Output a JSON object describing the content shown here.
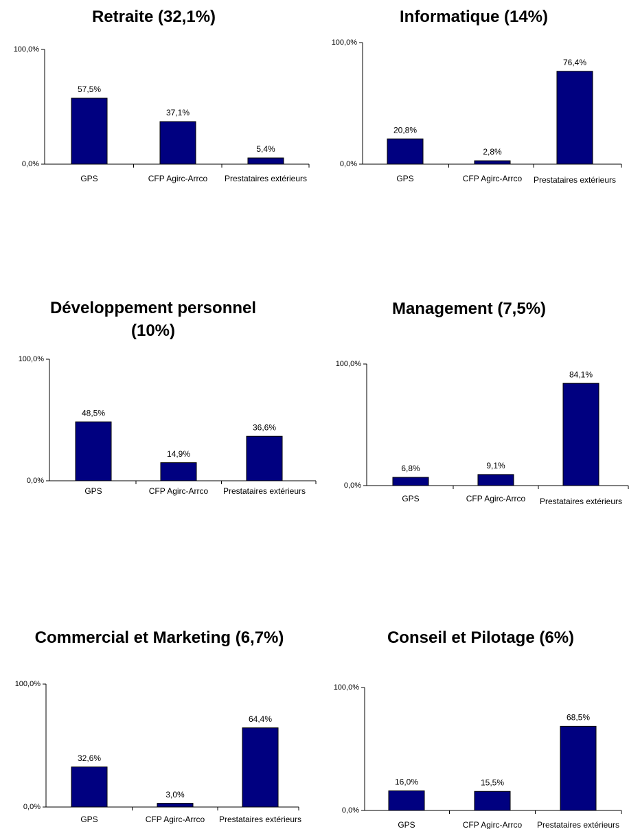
{
  "chart_data": [
    {
      "type": "bar",
      "title": "Retraite (32,1%)",
      "categories": [
        "GPS",
        "CFP Agirc-Arrco",
        "Prestataires extérieurs"
      ],
      "values": [
        57.5,
        37.1,
        5.4
      ],
      "value_labels": [
        "57,5%",
        "37,1%",
        "5,4%"
      ],
      "color": "#000080",
      "ylim": [
        0,
        100
      ],
      "yticks": [
        {
          "value": 0,
          "label": "0,0%"
        },
        {
          "value": 100,
          "label": "100,0%"
        }
      ]
    },
    {
      "type": "bar",
      "title": "Informatique (14%)",
      "categories": [
        "GPS",
        "CFP Agirc-Arrco",
        "Prestataires extérieurs"
      ],
      "values": [
        20.8,
        2.8,
        76.4
      ],
      "value_labels": [
        "20,8%",
        "2,8%",
        "76,4%"
      ],
      "color": "#000080",
      "ylim": [
        0,
        100
      ],
      "yticks": [
        {
          "value": 0,
          "label": "0,0%"
        },
        {
          "value": 100,
          "label": "100,0%"
        }
      ]
    },
    {
      "type": "bar",
      "title": "Développement personnel (10%)",
      "categories": [
        "GPS",
        "CFP Agirc-Arrco",
        "Prestataires extérieurs"
      ],
      "values": [
        48.5,
        14.9,
        36.6
      ],
      "value_labels": [
        "48,5%",
        "14,9%",
        "36,6%"
      ],
      "color": "#000080",
      "ylim": [
        0,
        100
      ],
      "yticks": [
        {
          "value": 0,
          "label": "0,0%"
        },
        {
          "value": 100,
          "label": "100,0%"
        }
      ]
    },
    {
      "type": "bar",
      "title": "Management (7,5%)",
      "categories": [
        "GPS",
        "CFP Agirc-Arrco",
        "Prestataires extérieurs"
      ],
      "values": [
        6.8,
        9.1,
        84.1
      ],
      "value_labels": [
        "6,8%",
        "9,1%",
        "84,1%"
      ],
      "color": "#000080",
      "ylim": [
        0,
        100
      ],
      "yticks": [
        {
          "value": 0,
          "label": "0,0%"
        },
        {
          "value": 100,
          "label": "100,0%"
        }
      ]
    },
    {
      "type": "bar",
      "title": "Commercial et Marketing (6,7%)",
      "categories": [
        "GPS",
        "CFP Agirc-Arrco",
        "Prestataires extérieurs"
      ],
      "values": [
        32.6,
        3.0,
        64.4
      ],
      "value_labels": [
        "32,6%",
        "3,0%",
        "64,4%"
      ],
      "color": "#000080",
      "ylim": [
        0,
        100
      ],
      "yticks": [
        {
          "value": 0,
          "label": "0,0%"
        },
        {
          "value": 100,
          "label": "100,0%"
        }
      ]
    },
    {
      "type": "bar",
      "title": "Conseil et Pilotage (6%)",
      "categories": [
        "GPS",
        "CFP Agirc-Arrco",
        "Prestataires extérieurs"
      ],
      "values": [
        16.0,
        15.5,
        68.5
      ],
      "value_labels": [
        "16,0%",
        "15,5%",
        "68,5%"
      ],
      "color": "#000080",
      "ylim": [
        0,
        100
      ],
      "yticks": [
        {
          "value": 0,
          "label": "0,0%"
        },
        {
          "value": 100,
          "label": "100,0%"
        }
      ]
    }
  ]
}
